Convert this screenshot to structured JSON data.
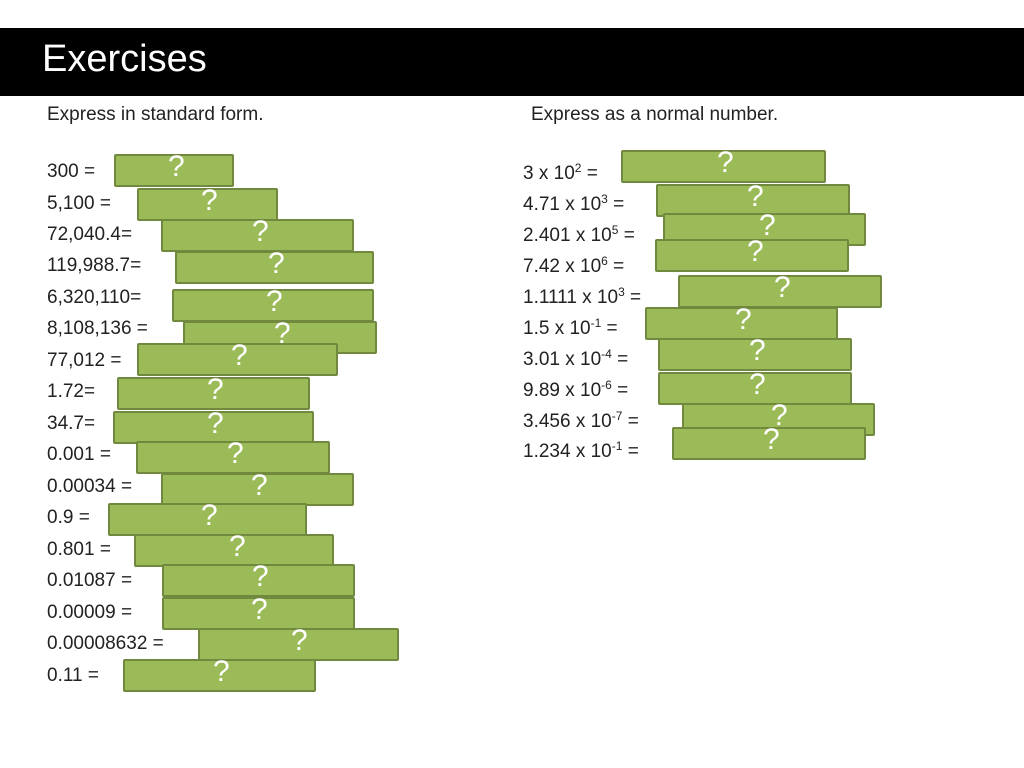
{
  "title": "Exercises",
  "left_heading": "Express in standard form.",
  "right_heading": "Express as a normal number.",
  "placeholder": "?",
  "left_questions": [
    "300 =",
    "5,100 =",
    "72,040.4=",
    "119,988.7=",
    "6,320,110=",
    "8,108,136  =",
    "77,012 =",
    "1.72=",
    "34.7=",
    "0.001 =",
    "0.00034 =",
    "0.9 =",
    "0.801 =",
    "0.01087 =",
    "0.00009 =",
    "0.00008632 =",
    "0.11 ="
  ],
  "right_questions": [
    {
      "base": "3 x 10",
      "exp": "2",
      "tail": " ="
    },
    {
      "base": "4.71 x 10",
      "exp": "3",
      "tail": " ="
    },
    {
      "base": "2.401 x 10",
      "exp": "5",
      "tail": " ="
    },
    {
      "base": "7.42 x 10",
      "exp": "6",
      "tail": " ="
    },
    {
      "base": "1.1111 x 10",
      "exp": "3",
      "tail": " ="
    },
    {
      "base": "1.5 x 10",
      "exp": "-1",
      "tail": " ="
    },
    {
      "base": "3.01 x 10",
      "exp": "-4",
      "tail": " ="
    },
    {
      "base": "9.89 x 10",
      "exp": "-6",
      "tail": " ="
    },
    {
      "base": "3.456 x 10",
      "exp": "-7",
      "tail": "  ="
    },
    {
      "base": "1.234 x 10",
      "exp": "-1",
      "tail": " ="
    }
  ]
}
